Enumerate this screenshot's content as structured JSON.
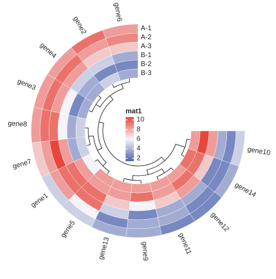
{
  "chart_data": {
    "type": "circular-heatmap",
    "categories": [
      "gene6",
      "gene2",
      "gene4",
      "gene3",
      "gene8",
      "gene7",
      "gene1",
      "gene5",
      "gene13",
      "gene9",
      "gene11",
      "gene12",
      "gene14",
      "gene10"
    ],
    "series": [
      {
        "name": "A-1",
        "values": [
          8,
          9,
          8,
          8,
          8,
          7,
          5,
          5,
          4,
          4,
          3,
          3,
          4,
          5
        ]
      },
      {
        "name": "A-2",
        "values": [
          8.5,
          8,
          9,
          9,
          9,
          8,
          8,
          6,
          3,
          4,
          4,
          3,
          3,
          3
        ]
      },
      {
        "name": "A-3",
        "values": [
          7,
          7,
          8,
          8,
          9,
          10,
          9,
          9,
          5,
          3,
          4,
          4,
          3,
          4
        ]
      },
      {
        "name": "B-1",
        "values": [
          4,
          5,
          5,
          6,
          6,
          8,
          9,
          9,
          7,
          6,
          7,
          8,
          7,
          8
        ]
      },
      {
        "name": "B-2",
        "values": [
          3,
          3,
          4,
          3,
          4,
          4,
          8,
          8,
          8,
          9,
          8,
          9,
          9,
          10
        ]
      },
      {
        "name": "B-3",
        "values": [
          4,
          5,
          4,
          4,
          5,
          5,
          6,
          8,
          8,
          8,
          8,
          8,
          9,
          8
        ]
      }
    ],
    "colorscale": [
      {
        "value": 2,
        "color": "#4f64ad"
      },
      {
        "value": 6,
        "color": "#f4f4f8"
      },
      {
        "value": 10,
        "color": "#e8463c"
      }
    ],
    "legend": {
      "title": "mat1",
      "ticks": [
        10,
        8,
        6,
        4,
        2
      ]
    }
  }
}
